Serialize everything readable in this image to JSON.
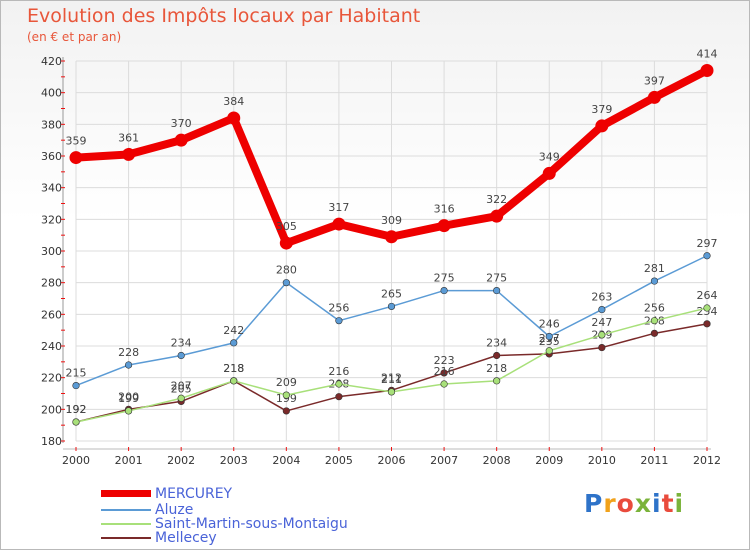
{
  "title": "Evolution des Impôts locaux par Habitant",
  "subtitle": "(en € et par an)",
  "logo": {
    "text": "Proxiti",
    "letter_colors": [
      "#2e73c9",
      "#f1a21b",
      "#e94b3c",
      "#7ab33a",
      "#2e73c9",
      "#e94b3c",
      "#7ab33a"
    ]
  },
  "chart_data": {
    "type": "line",
    "x": [
      "2000",
      "2001",
      "2002",
      "2003",
      "2004",
      "2005",
      "2006",
      "2007",
      "2008",
      "2009",
      "2010",
      "2011",
      "2012"
    ],
    "ylim": [
      180,
      420
    ],
    "yticks": [
      180,
      200,
      220,
      240,
      260,
      280,
      300,
      320,
      340,
      360,
      380,
      400,
      420
    ],
    "grid": true,
    "legend_position": "bottom-left",
    "series": [
      {
        "name": "MERCUREY",
        "color": "#ee0000",
        "values": [
          359,
          361,
          370,
          384,
          305,
          317,
          309,
          316,
          322,
          349,
          379,
          397,
          414
        ]
      },
      {
        "name": "Aluze",
        "color": "#5b9bd5",
        "values": [
          215,
          228,
          234,
          242,
          280,
          256,
          265,
          275,
          275,
          246,
          263,
          281,
          297
        ]
      },
      {
        "name": "Saint-Martin-sous-Montaigu",
        "color": "#a8e07a",
        "values": [
          192,
          199,
          207,
          218,
          209,
          216,
          211,
          216,
          218,
          237,
          247,
          256,
          264
        ]
      },
      {
        "name": "Mellecey",
        "color": "#7a2a2a",
        "values": [
          192,
          200,
          205,
          218,
          199,
          208,
          212,
          223,
          234,
          235,
          239,
          248,
          254
        ]
      }
    ]
  }
}
